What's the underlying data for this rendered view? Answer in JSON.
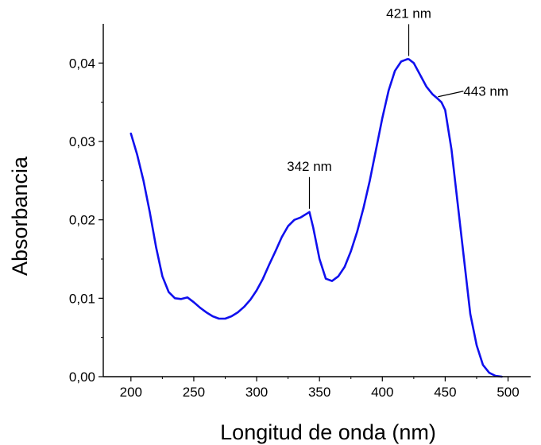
{
  "chart_data": {
    "type": "line",
    "title": "",
    "xlabel": "Longitud de onda (nm)",
    "ylabel": "Absorbancia",
    "xlim": [
      178,
      518
    ],
    "ylim": [
      0,
      0.045
    ],
    "x_ticks": [
      200,
      250,
      300,
      350,
      400,
      450,
      500
    ],
    "x_tick_labels": [
      "200",
      "250",
      "300",
      "350",
      "400",
      "450",
      "500"
    ],
    "y_ticks": [
      0,
      0.01,
      0.02,
      0.03,
      0.04
    ],
    "y_tick_labels": [
      "0,00",
      "0,01",
      "0,02",
      "0,03",
      "0,04"
    ],
    "grid": false,
    "series": [
      {
        "color": "#1010ee",
        "x": [
          200,
          205,
          210,
          215,
          220,
          225,
          230,
          235,
          240,
          245,
          250,
          255,
          260,
          265,
          270,
          275,
          280,
          285,
          290,
          295,
          300,
          305,
          310,
          315,
          320,
          325,
          330,
          335,
          340,
          342,
          345,
          350,
          355,
          360,
          365,
          370,
          375,
          380,
          385,
          390,
          395,
          400,
          405,
          410,
          415,
          420,
          421,
          425,
          430,
          435,
          440,
          443,
          447,
          450,
          455,
          460,
          465,
          470,
          475,
          480,
          485,
          490,
          495
        ],
        "y": [
          0.031,
          0.0283,
          0.025,
          0.021,
          0.0165,
          0.0128,
          0.0108,
          0.01,
          0.0099,
          0.0101,
          0.0095,
          0.0088,
          0.0082,
          0.0077,
          0.0074,
          0.0074,
          0.0077,
          0.0082,
          0.0089,
          0.0098,
          0.011,
          0.0125,
          0.0143,
          0.016,
          0.0178,
          0.0192,
          0.02,
          0.0203,
          0.0208,
          0.021,
          0.019,
          0.015,
          0.0125,
          0.0122,
          0.0128,
          0.014,
          0.016,
          0.0185,
          0.0215,
          0.025,
          0.029,
          0.033,
          0.0365,
          0.039,
          0.0402,
          0.0405,
          0.0405,
          0.04,
          0.0385,
          0.037,
          0.036,
          0.0356,
          0.035,
          0.034,
          0.029,
          0.022,
          0.015,
          0.008,
          0.004,
          0.0015,
          0.0005,
          0.0001,
          0.0
        ]
      }
    ],
    "annotations": [
      {
        "label": "342 nm",
        "x": 342,
        "y": 0.021,
        "position": "above"
      },
      {
        "label": "421 nm",
        "x": 421,
        "y": 0.0405,
        "position": "above"
      },
      {
        "label": "443 nm",
        "x": 443,
        "y": 0.0356,
        "position": "right"
      }
    ]
  }
}
